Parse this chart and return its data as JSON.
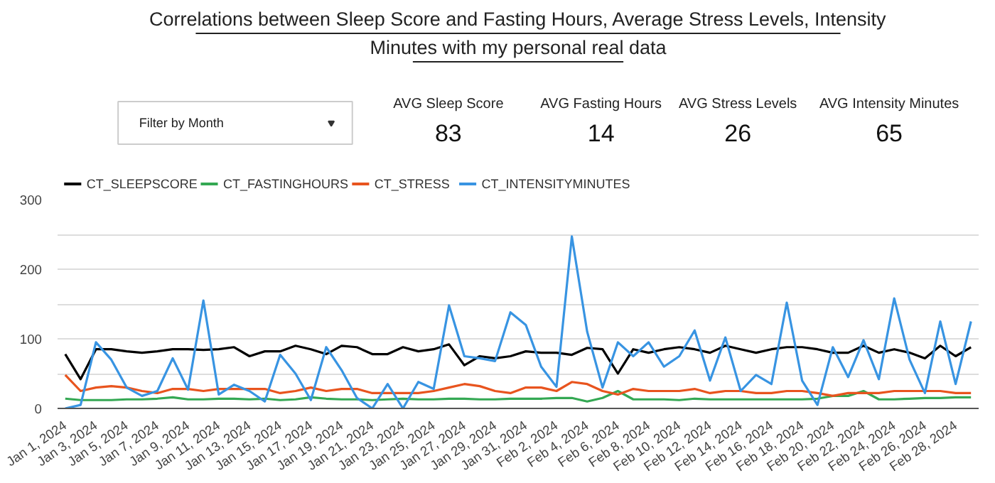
{
  "chart_data": {
    "type": "line",
    "title": "Correlations between Sleep Score and Fasting Hours, Average Stress Levels, Intensity Minutes with my personal real data",
    "annotations": [
      "Filter by Month",
      "AVG Sleep Score",
      "83",
      "AVG Fasting Hours",
      "14",
      "AVG Stress Levels",
      "26",
      "AVG Intensity Minutes",
      "65"
    ],
    "categories": [
      "Jan 1, 2024",
      null,
      "Jan 3, 2024",
      null,
      "Jan 5, 2024",
      null,
      "Jan 7, 2024",
      null,
      "Jan 9, 2024",
      null,
      "Jan 11, 2024",
      null,
      "Jan 13, 2024",
      null,
      "Jan 15, 2024",
      null,
      "Jan 17, 2024",
      null,
      "Jan 19, 2024",
      null,
      "Jan 21, 2024",
      null,
      "Jan 23, 2024",
      null,
      "Jan 25, 2024",
      null,
      "Jan 27, 2024",
      null,
      "Jan 29, 2024",
      null,
      "Jan 31, 2024",
      null,
      "Feb 2, 2024",
      null,
      "Feb 4, 2024",
      null,
      "Feb 6, 2024",
      null,
      "Feb 8, 2024",
      null,
      "Feb 10, 2024",
      null,
      "Feb 12, 2024",
      null,
      "Feb 14, 2024",
      null,
      "Feb 16, 2024",
      null,
      "Feb 18, 2024",
      null,
      "Feb 20, 2024",
      null,
      "Feb 22, 2024",
      null,
      "Feb 24, 2024",
      null,
      "Feb 26, 2024",
      null,
      "Feb 28, 2024",
      null
    ],
    "series": [
      {
        "name": "CT_SLEEPSCORE",
        "color": "#000000",
        "values": [
          78,
          42,
          85,
          85,
          82,
          80,
          82,
          85,
          85,
          84,
          85,
          88,
          75,
          82,
          82,
          90,
          85,
          78,
          90,
          88,
          78,
          78,
          88,
          82,
          85,
          92,
          62,
          75,
          72,
          75,
          82,
          80,
          80,
          77,
          87,
          85,
          50,
          85,
          80,
          85,
          88,
          85,
          80,
          90,
          85,
          80,
          85,
          88,
          88,
          85,
          80,
          80,
          90,
          80,
          85,
          80,
          72,
          90,
          75,
          88
        ]
      },
      {
        "name": "CT_FASTINGHOURS",
        "color": "#34a853",
        "values": [
          14,
          12,
          12,
          12,
          13,
          13,
          14,
          16,
          13,
          13,
          14,
          14,
          13,
          14,
          12,
          13,
          16,
          14,
          13,
          13,
          12,
          13,
          14,
          13,
          13,
          14,
          14,
          13,
          13,
          14,
          14,
          14,
          15,
          15,
          10,
          15,
          25,
          13,
          13,
          13,
          12,
          14,
          13,
          13,
          13,
          13,
          13,
          13,
          13,
          14,
          18,
          18,
          25,
          13,
          13,
          14,
          15,
          15,
          16,
          16
        ]
      },
      {
        "name": "CT_STRESS",
        "color": "#e8541e",
        "values": [
          48,
          25,
          30,
          32,
          30,
          25,
          22,
          28,
          28,
          25,
          28,
          28,
          28,
          28,
          22,
          25,
          30,
          25,
          28,
          28,
          22,
          22,
          22,
          22,
          25,
          30,
          35,
          32,
          25,
          22,
          30,
          30,
          25,
          38,
          35,
          25,
          20,
          28,
          25,
          25,
          25,
          28,
          22,
          25,
          25,
          22,
          22,
          25,
          25,
          22,
          18,
          22,
          22,
          22,
          25,
          25,
          25,
          25,
          22,
          22
        ]
      },
      {
        "name": "CT_INTENSITYMINUTES",
        "color": "#3894e2",
        "values": [
          0,
          5,
          95,
          70,
          30,
          18,
          25,
          72,
          27,
          155,
          20,
          34,
          25,
          10,
          77,
          50,
          12,
          88,
          55,
          15,
          0,
          35,
          0,
          38,
          28,
          148,
          75,
          72,
          68,
          138,
          120,
          60,
          31,
          247,
          110,
          30,
          95,
          75,
          95,
          60,
          75,
          112,
          40,
          102,
          25,
          48,
          35,
          152,
          40,
          5,
          88,
          45,
          98,
          42,
          158,
          70,
          22,
          125,
          35,
          125
        ]
      }
    ],
    "ylim": [
      0,
      300
    ],
    "yticks": [
      0,
      {
        "value": 50,
        "label": null
      },
      100,
      {
        "value": 150,
        "label": null
      },
      200,
      {
        "value": 250,
        "label": null
      },
      300
    ],
    "grid": "y",
    "legend": "top left"
  }
}
